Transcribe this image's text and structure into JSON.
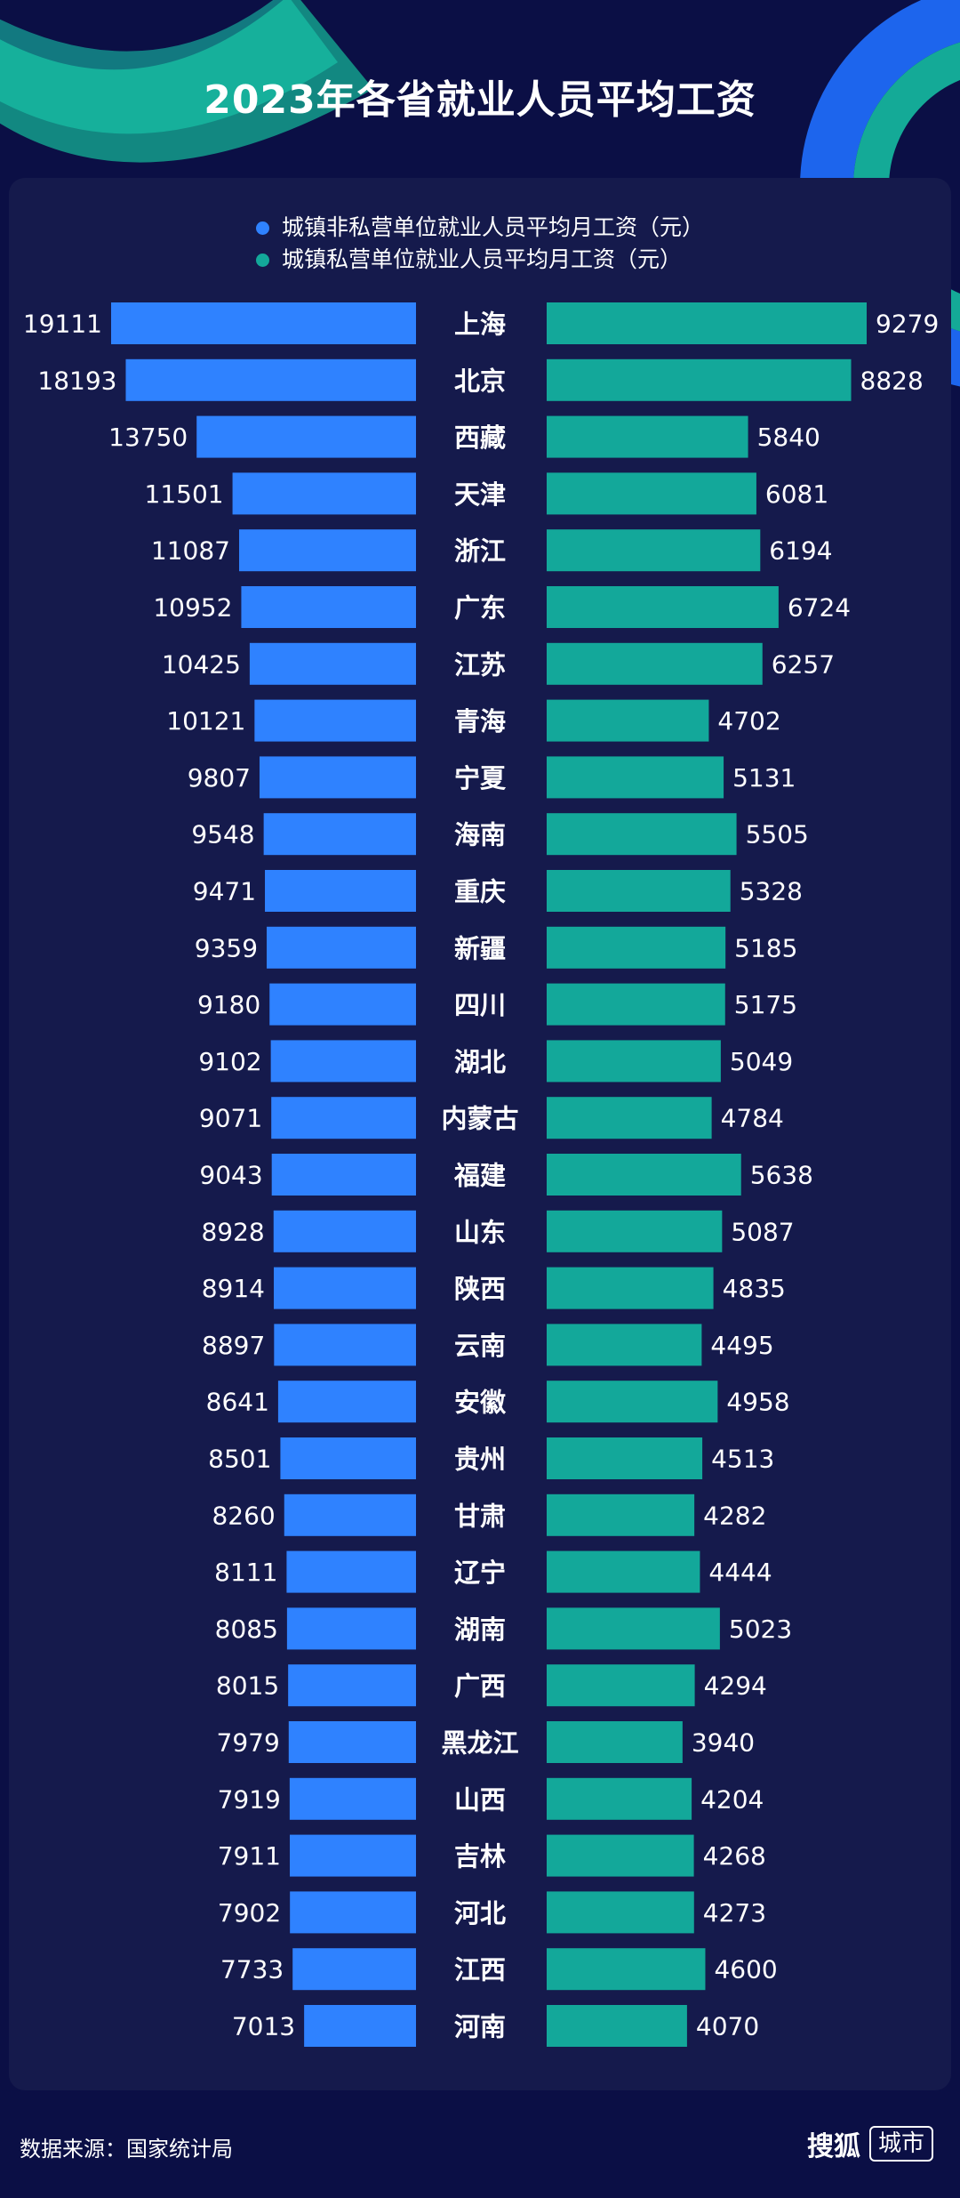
{
  "title": "2023年各省就业人员平均工资",
  "colors": {
    "background": "#0b0f45",
    "panel": "#151a4c",
    "left_bar": "#2f82ff",
    "right_bar": "#13a89a",
    "deco_teal": "#16c6a6",
    "deco_blue": "#1f6fff"
  },
  "chart_data": {
    "type": "bar",
    "orientation": "horizontal-diverging",
    "title": "2023年各省就业人员平均工资",
    "categories": [
      "上海",
      "北京",
      "西藏",
      "天津",
      "浙江",
      "广东",
      "江苏",
      "青海",
      "宁夏",
      "海南",
      "重庆",
      "新疆",
      "四川",
      "湖北",
      "内蒙古",
      "福建",
      "山东",
      "陕西",
      "云南",
      "安徽",
      "贵州",
      "甘肃",
      "辽宁",
      "湖南",
      "广西",
      "黑龙江",
      "山西",
      "吉林",
      "河北",
      "江西",
      "河南"
    ],
    "series": [
      {
        "name": "城镇非私营单位就业人员平均月工资（元）",
        "color": "#2f82ff",
        "side": "left",
        "values": [
          19111,
          18193,
          13750,
          11501,
          11087,
          10952,
          10425,
          10121,
          9807,
          9548,
          9471,
          9359,
          9180,
          9102,
          9071,
          9043,
          8928,
          8914,
          8897,
          8641,
          8501,
          8260,
          8111,
          8085,
          8015,
          7979,
          7919,
          7911,
          7902,
          7733,
          7013
        ]
      },
      {
        "name": "城镇私营单位就业人员平均月工资（元）",
        "color": "#13a89a",
        "side": "right",
        "values": [
          9279,
          8828,
          5840,
          6081,
          6194,
          6724,
          6257,
          4702,
          5131,
          5505,
          5328,
          5185,
          5175,
          5049,
          4784,
          5638,
          5087,
          4835,
          4495,
          4958,
          4513,
          4282,
          4444,
          5023,
          4294,
          3940,
          4204,
          4268,
          4273,
          4600,
          4070
        ]
      }
    ],
    "legend_position": "top",
    "grid": false
  },
  "footer": {
    "source": "数据来源：国家统计局",
    "brand_name": "搜狐",
    "brand_tag": "城市"
  }
}
